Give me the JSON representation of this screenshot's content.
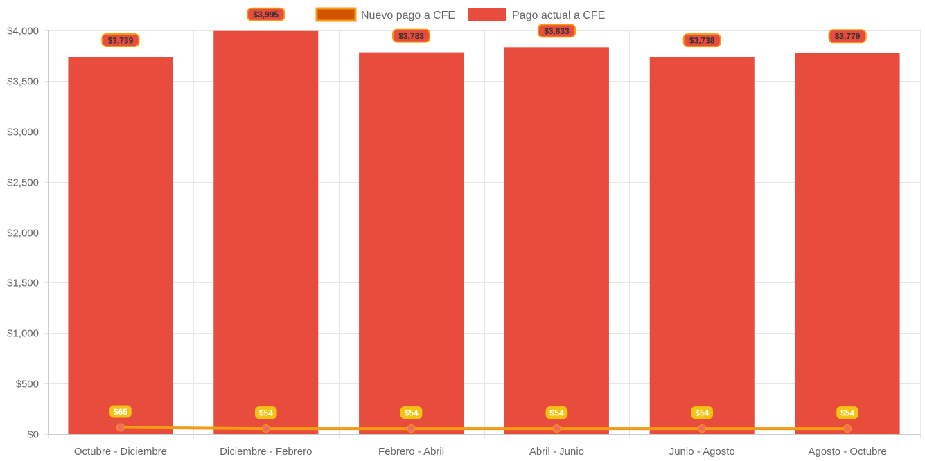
{
  "chart_data": {
    "type": "bar",
    "categories": [
      "Octubre - Diciembre",
      "Diciembre - Febrero",
      "Febrero - Abril",
      "Abril - Junio",
      "Junio - Agosto",
      "Agosto - Octubre"
    ],
    "series": [
      {
        "name": "Nuevo pago a CFE",
        "type": "line",
        "values": [
          65,
          54,
          54,
          54,
          54,
          54
        ],
        "labels": [
          "$65",
          "$54",
          "$54",
          "$54",
          "$54",
          "$54"
        ],
        "color": "#f39c12",
        "point_color": "#f26d5b",
        "label_bg": "#f1c40f",
        "legend_fill": "#d35400"
      },
      {
        "name": "Pago actual a CFE",
        "type": "bar",
        "values": [
          3739,
          3995,
          3783,
          3833,
          3738,
          3779
        ],
        "labels": [
          "$3,739",
          "$3,995",
          "$3,783",
          "$3,833",
          "$3,738",
          "$3,779"
        ],
        "color": "#e74c3c",
        "label_bg": "#e74c3c",
        "label_border": "#f39c12",
        "label_text_color": "#333333"
      }
    ],
    "y_ticks": [
      "$0",
      "$500",
      "$1,000",
      "$1,500",
      "$2,000",
      "$2,500",
      "$3,000",
      "$3,500",
      "$4,000"
    ],
    "ylim": [
      0,
      4000
    ],
    "grid": true,
    "legend_position": "top-center"
  }
}
